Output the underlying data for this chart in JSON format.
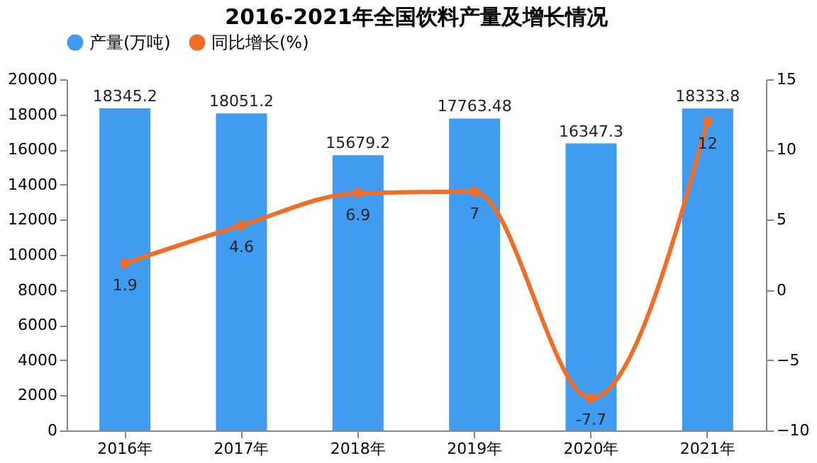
{
  "chart_data": {
    "type": "bar",
    "title": "2016-2021年全国饮料产量及增长情况",
    "categories": [
      "2016年",
      "2017年",
      "2018年",
      "2019年",
      "2020年",
      "2021年"
    ],
    "series": [
      {
        "name": "产量(万吨)",
        "color": "#3f9cf0",
        "values": [
          18345.2,
          18051.2,
          15679.2,
          17763.48,
          16347.3,
          18333.8
        ]
      },
      {
        "name": "同比增长(%)",
        "type": "line",
        "axis": "y2",
        "color": "#f06e28",
        "marker": "circle",
        "values": [
          1.9,
          4.6,
          6.9,
          7,
          -7.7,
          12
        ]
      }
    ],
    "ylim": [
      0,
      20000
    ],
    "yticks": [
      0,
      2000,
      4000,
      6000,
      8000,
      10000,
      12000,
      14000,
      16000,
      18000,
      20000
    ],
    "y2lim": [
      -10,
      15
    ],
    "y2ticks": [
      -10,
      -5,
      0,
      5,
      10,
      15
    ],
    "data_labels": true,
    "legend": "top",
    "grid": false
  }
}
